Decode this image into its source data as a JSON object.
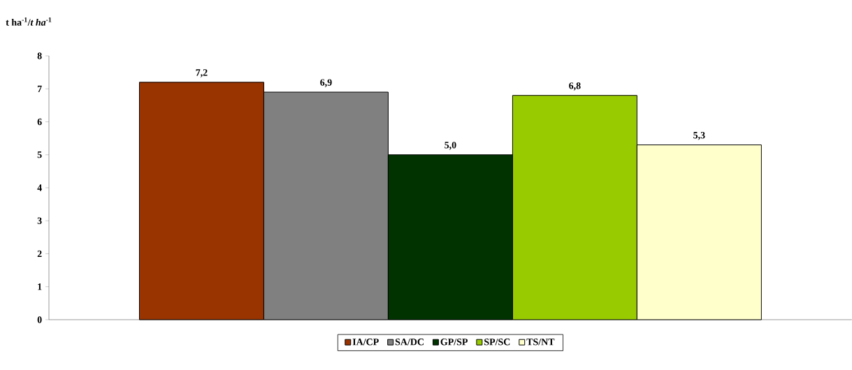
{
  "chart_data": {
    "type": "bar",
    "ylabel": "t ha$^{-1}$/*t ha*$^{-1}$",
    "categories": [
      null
    ],
    "series": [
      {
        "name": "IA/CP",
        "color": "#993300",
        "values": [
          7.2
        ],
        "value_labels": [
          "7,2"
        ]
      },
      {
        "name": "SA/DC",
        "color": "#808080",
        "values": [
          6.9
        ],
        "value_labels": [
          "6,9"
        ]
      },
      {
        "name": "GP/SP",
        "color": "#003300",
        "values": [
          5.0
        ],
        "value_labels": [
          "5,0"
        ]
      },
      {
        "name": "SP/SC",
        "color": "#99cc00",
        "values": [
          6.8
        ],
        "value_labels": [
          "6,8"
        ]
      },
      {
        "name": "TS/NT",
        "color": "#ffffcc",
        "values": [
          5.3
        ],
        "value_labels": [
          "5,3"
        ]
      }
    ],
    "ylim": [
      0,
      8
    ],
    "yticks": [
      0,
      1,
      2,
      3,
      4,
      5,
      6,
      7,
      8
    ],
    "legend": "bottom"
  }
}
